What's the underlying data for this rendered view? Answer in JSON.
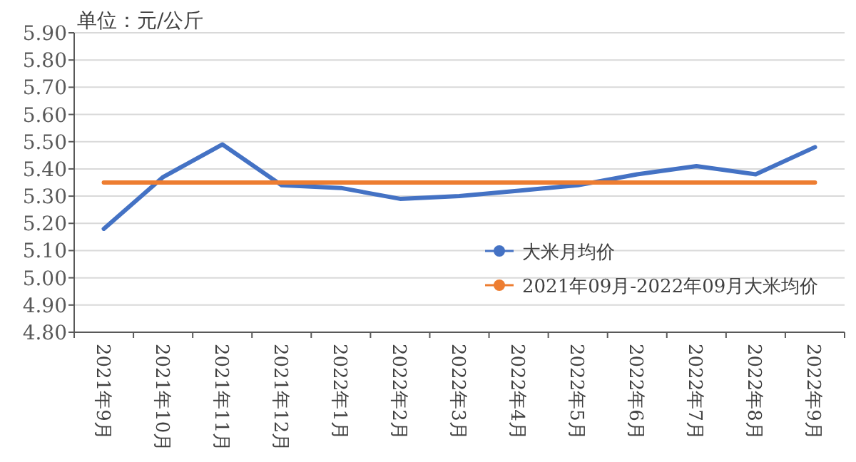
{
  "chart_data": {
    "type": "line",
    "ylabel": "单位：元/公斤",
    "categories": [
      "2021年9月",
      "2021年10月",
      "2021年11月",
      "2021年12月",
      "2022年1月",
      "2022年2月",
      "2022年3月",
      "2022年4月",
      "2022年5月",
      "2022年6月",
      "2022年7月",
      "2022年8月",
      "2022年9月"
    ],
    "series": [
      {
        "name": "大米月均价",
        "color": "#4472c4",
        "values": [
          5.18,
          5.37,
          5.49,
          5.34,
          5.33,
          5.29,
          5.3,
          5.32,
          5.34,
          5.38,
          5.41,
          5.38,
          5.48
        ]
      },
      {
        "name": "2021年09月-2022年09月大米均价",
        "color": "#ed7d31",
        "values": [
          5.35,
          5.35,
          5.35,
          5.35,
          5.35,
          5.35,
          5.35,
          5.35,
          5.35,
          5.35,
          5.35,
          5.35,
          5.35
        ]
      }
    ],
    "ylim": [
      4.8,
      5.9
    ],
    "yticks": [
      {
        "value": 4.8,
        "label": "4.80"
      },
      {
        "value": 4.9,
        "label": "4.90"
      },
      {
        "value": 5.0,
        "label": "5.00"
      },
      {
        "value": 5.1,
        "label": "5.10"
      },
      {
        "value": 5.2,
        "label": "5.20"
      },
      {
        "value": 5.3,
        "label": "5.30"
      },
      {
        "value": 5.4,
        "label": "5.40"
      },
      {
        "value": 5.5,
        "label": "5.50"
      },
      {
        "value": 5.6,
        "label": "5.60"
      },
      {
        "value": 5.7,
        "label": "5.70"
      },
      {
        "value": 5.8,
        "label": "5.80"
      },
      {
        "value": 5.9,
        "label": "5.90"
      }
    ],
    "grid": "y",
    "legend": "bottom right"
  }
}
